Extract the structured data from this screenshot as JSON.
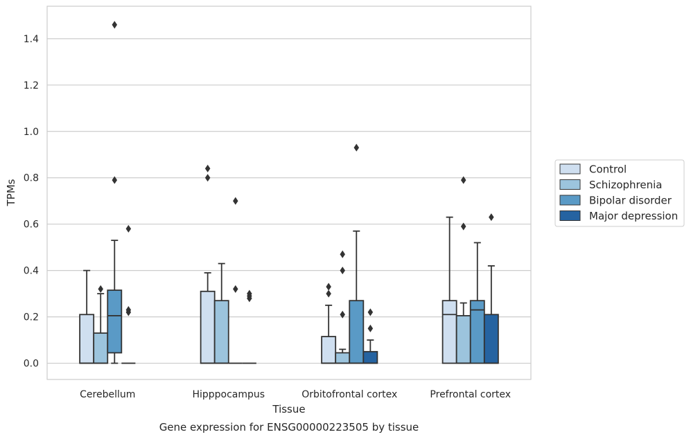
{
  "caption": "Gene expression for ENSG00000223505 by tissue",
  "chart_data": {
    "type": "box",
    "xlabel": "Tissue",
    "ylabel": "TPMs",
    "ylim": [
      -0.07,
      1.54
    ],
    "yticks": [
      0.0,
      0.2,
      0.4,
      0.6,
      0.8,
      1.0,
      1.2,
      1.4
    ],
    "ytick_labels": [
      "0.0",
      "0.2",
      "0.4",
      "0.6",
      "0.8",
      "1.0",
      "1.2",
      "1.4"
    ],
    "grid": "horizontal",
    "legend_position": "right",
    "categories": [
      "Cerebellum",
      "Hipppocampus",
      "Orbitofrontal cortex",
      "Prefrontal cortex"
    ],
    "series": [
      {
        "name": "Control",
        "color": "#cfdff0",
        "boxes": [
          {
            "q1": 0.0,
            "median": 0.0,
            "q3": 0.21,
            "whisker_low": 0.0,
            "whisker_high": 0.4,
            "outliers": []
          },
          {
            "q1": 0.0,
            "median": 0.0,
            "q3": 0.31,
            "whisker_low": 0.0,
            "whisker_high": 0.39,
            "outliers": [
              0.8,
              0.84
            ]
          },
          {
            "q1": 0.0,
            "median": 0.0,
            "q3": 0.115,
            "whisker_low": 0.0,
            "whisker_high": 0.25,
            "outliers": [
              0.3,
              0.33
            ]
          },
          {
            "q1": 0.0,
            "median": 0.21,
            "q3": 0.27,
            "whisker_low": 0.0,
            "whisker_high": 0.63,
            "outliers": []
          }
        ]
      },
      {
        "name": "Schizophrenia",
        "color": "#9cc4dd",
        "boxes": [
          {
            "q1": 0.0,
            "median": 0.0,
            "q3": 0.13,
            "whisker_low": 0.0,
            "whisker_high": 0.3,
            "outliers": [
              0.32
            ]
          },
          {
            "q1": 0.0,
            "median": 0.0,
            "q3": 0.27,
            "whisker_low": 0.0,
            "whisker_high": 0.43,
            "outliers": []
          },
          {
            "q1": 0.0,
            "median": 0.0,
            "q3": 0.045,
            "whisker_low": 0.0,
            "whisker_high": 0.06,
            "outliers": [
              0.21,
              0.4,
              0.47
            ]
          },
          {
            "q1": 0.0,
            "median": 0.0,
            "q3": 0.205,
            "whisker_low": 0.0,
            "whisker_high": 0.26,
            "outliers": [
              0.59,
              0.79
            ]
          }
        ]
      },
      {
        "name": "Bipolar disorder",
        "color": "#5a9ac6",
        "boxes": [
          {
            "q1": 0.045,
            "median": 0.205,
            "q3": 0.315,
            "whisker_low": 0.0,
            "whisker_high": 0.53,
            "outliers": [
              0.79,
              1.46
            ]
          },
          {
            "q1": 0.0,
            "median": 0.0,
            "q3": 0.0,
            "whisker_low": 0.0,
            "whisker_high": 0.0,
            "outliers": [
              0.32,
              0.7
            ]
          },
          {
            "q1": 0.0,
            "median": 0.0,
            "q3": 0.27,
            "whisker_low": 0.0,
            "whisker_high": 0.57,
            "outliers": [
              0.93
            ]
          },
          {
            "q1": 0.0,
            "median": 0.23,
            "q3": 0.27,
            "whisker_low": 0.0,
            "whisker_high": 0.52,
            "outliers": []
          }
        ]
      },
      {
        "name": "Major depression",
        "color": "#2563a1",
        "boxes": [
          {
            "q1": 0.0,
            "median": 0.0,
            "q3": 0.0,
            "whisker_low": 0.0,
            "whisker_high": 0.0,
            "outliers": [
              0.22,
              0.23,
              0.58
            ]
          },
          {
            "q1": 0.0,
            "median": 0.0,
            "q3": 0.0,
            "whisker_low": 0.0,
            "whisker_high": 0.0,
            "outliers": [
              0.28,
              0.29,
              0.3
            ]
          },
          {
            "q1": 0.0,
            "median": 0.0,
            "q3": 0.05,
            "whisker_low": 0.0,
            "whisker_high": 0.1,
            "outliers": [
              0.15,
              0.22
            ]
          },
          {
            "q1": 0.0,
            "median": 0.0,
            "q3": 0.21,
            "whisker_low": 0.0,
            "whisker_high": 0.42,
            "outliers": [
              0.63
            ]
          }
        ]
      }
    ]
  }
}
